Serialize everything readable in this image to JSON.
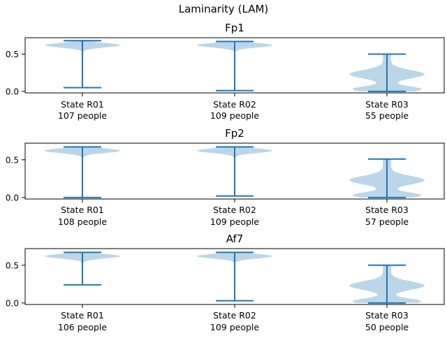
{
  "suptitle": "Laminarity (LAM)",
  "colors": {
    "violin_fill": "#1f77b4",
    "violin_line": "#1f77b4",
    "axes": "#000000"
  },
  "chart_data": [
    {
      "type": "violin",
      "title": "Fp1",
      "ylim": [
        -0.02,
        0.72
      ],
      "yticks": [
        "0.0",
        "0.5"
      ],
      "ytick_values": [
        0.0,
        0.5
      ],
      "categories": [
        {
          "label": "State R01",
          "count_label": "107 people",
          "min": 0.05,
          "max": 0.68,
          "mode": 0.62
        },
        {
          "label": "State R02",
          "count_label": "109 people",
          "min": 0.01,
          "max": 0.67,
          "mode": 0.62
        },
        {
          "label": "State R03",
          "count_label": "55 people",
          "min": 0.0,
          "max": 0.5,
          "modes": [
            0.03,
            0.23
          ]
        }
      ]
    },
    {
      "type": "violin",
      "title": "Fp2",
      "ylim": [
        -0.02,
        0.72
      ],
      "yticks": [
        "0.0",
        "0.5"
      ],
      "ytick_values": [
        0.0,
        0.5
      ],
      "categories": [
        {
          "label": "State R01",
          "count_label": "108 people",
          "min": 0.0,
          "max": 0.67,
          "mode": 0.62
        },
        {
          "label": "State R02",
          "count_label": "109 people",
          "min": 0.02,
          "max": 0.67,
          "mode": 0.62
        },
        {
          "label": "State R03",
          "count_label": "57 people",
          "min": 0.0,
          "max": 0.51,
          "modes": [
            0.03,
            0.23
          ]
        }
      ]
    },
    {
      "type": "violin",
      "title": "Af7",
      "ylim": [
        -0.02,
        0.72
      ],
      "yticks": [
        "0.0",
        "0.5"
      ],
      "ytick_values": [
        0.0,
        0.5
      ],
      "categories": [
        {
          "label": "State R01",
          "count_label": "106 people",
          "min": 0.24,
          "max": 0.67,
          "mode": 0.62
        },
        {
          "label": "State R02",
          "count_label": "109 people",
          "min": 0.03,
          "max": 0.67,
          "mode": 0.62
        },
        {
          "label": "State R03",
          "count_label": "50 people",
          "min": 0.0,
          "max": 0.5,
          "modes": [
            0.02,
            0.23
          ]
        }
      ]
    }
  ]
}
